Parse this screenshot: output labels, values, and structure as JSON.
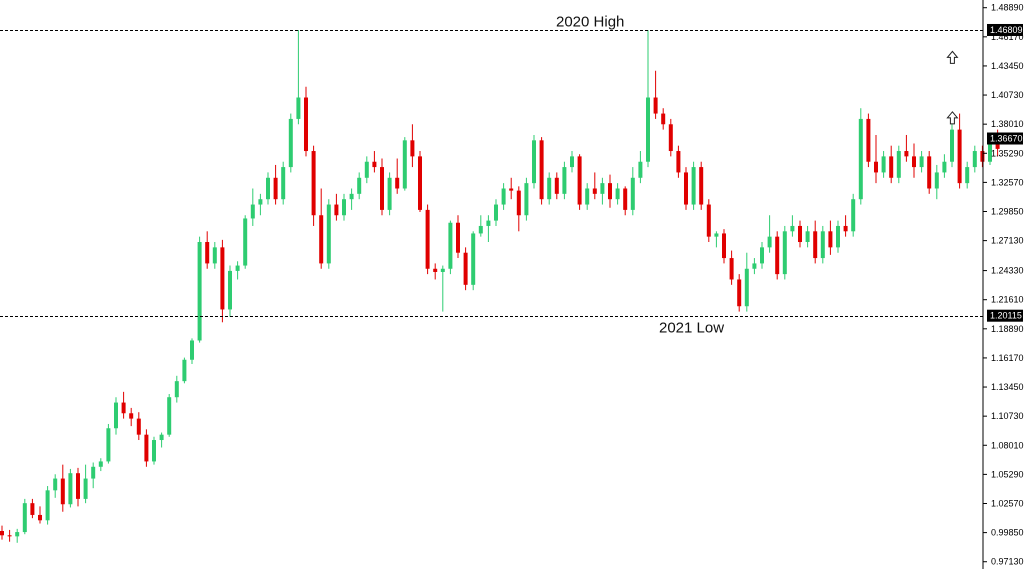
{
  "chart_data": {
    "type": "candlestick",
    "title": "",
    "xlabel": "",
    "ylabel": "",
    "ylim": [
      0.9645,
      1.4961
    ],
    "y_ticks": [
      "1.48890",
      "1.46170",
      "1.43450",
      "1.40730",
      "1.38010",
      "1.35290",
      "1.32570",
      "1.29850",
      "1.27130",
      "1.24330",
      "1.21610",
      "1.18890",
      "1.16170",
      "1.13450",
      "1.10730",
      "1.08010",
      "1.05290",
      "1.02570",
      "0.99850",
      "0.97130"
    ],
    "current_price": "1.36670",
    "colors": {
      "up": "#2ecc71",
      "down": "#e00000",
      "level_line": "#000000",
      "price_box": "#000000"
    },
    "levels": [
      {
        "name": "2020 High",
        "price": "1.46809"
      },
      {
        "name": "2021 Low",
        "price": "1.20115"
      }
    ],
    "arrows": [
      {
        "icon": "up-arrow-icon",
        "price": 1.4425,
        "index": 124
      },
      {
        "icon": "up-arrow-icon",
        "price": 1.386,
        "index": 124
      }
    ],
    "candles": [
      [
        1.0,
        1.005,
        0.992,
        0.996
      ],
      [
        0.996,
        1.001,
        0.99,
        0.995
      ],
      [
        0.995,
        1.002,
        0.989,
        0.999
      ],
      [
        0.999,
        1.03,
        0.997,
        1.026
      ],
      [
        1.026,
        1.03,
        1.012,
        1.015
      ],
      [
        1.015,
        1.023,
        1.007,
        1.01
      ],
      [
        1.01,
        1.042,
        1.006,
        1.038
      ],
      [
        1.038,
        1.053,
        1.031,
        1.049
      ],
      [
        1.049,
        1.062,
        1.018,
        1.025
      ],
      [
        1.025,
        1.058,
        1.022,
        1.054
      ],
      [
        1.054,
        1.059,
        1.023,
        1.03
      ],
      [
        1.03,
        1.062,
        1.026,
        1.049
      ],
      [
        1.049,
        1.064,
        1.04,
        1.06
      ],
      [
        1.06,
        1.068,
        1.056,
        1.065
      ],
      [
        1.065,
        1.1,
        1.063,
        1.096
      ],
      [
        1.096,
        1.125,
        1.09,
        1.12
      ],
      [
        1.12,
        1.13,
        1.105,
        1.11
      ],
      [
        1.11,
        1.115,
        1.098,
        1.105
      ],
      [
        1.105,
        1.111,
        1.085,
        1.09
      ],
      [
        1.09,
        1.095,
        1.06,
        1.065
      ],
      [
        1.065,
        1.088,
        1.062,
        1.085
      ],
      [
        1.085,
        1.092,
        1.078,
        1.09
      ],
      [
        1.09,
        1.128,
        1.088,
        1.125
      ],
      [
        1.125,
        1.145,
        1.12,
        1.14
      ],
      [
        1.14,
        1.162,
        1.138,
        1.16
      ],
      [
        1.16,
        1.18,
        1.156,
        1.178
      ],
      [
        1.178,
        1.275,
        1.176,
        1.27
      ],
      [
        1.27,
        1.28,
        1.245,
        1.25
      ],
      [
        1.25,
        1.27,
        1.245,
        1.265
      ],
      [
        1.265,
        1.272,
        1.195,
        1.207
      ],
      [
        1.207,
        1.248,
        1.2,
        1.243
      ],
      [
        1.243,
        1.252,
        1.235,
        1.248
      ],
      [
        1.248,
        1.295,
        1.245,
        1.292
      ],
      [
        1.292,
        1.32,
        1.285,
        1.305
      ],
      [
        1.305,
        1.315,
        1.295,
        1.31
      ],
      [
        1.31,
        1.335,
        1.305,
        1.33
      ],
      [
        1.33,
        1.342,
        1.305,
        1.31
      ],
      [
        1.31,
        1.345,
        1.305,
        1.34
      ],
      [
        1.34,
        1.39,
        1.335,
        1.385
      ],
      [
        1.385,
        1.468,
        1.38,
        1.405
      ],
      [
        1.405,
        1.415,
        1.35,
        1.355
      ],
      [
        1.355,
        1.36,
        1.285,
        1.295
      ],
      [
        1.295,
        1.32,
        1.245,
        1.25
      ],
      [
        1.25,
        1.31,
        1.245,
        1.305
      ],
      [
        1.305,
        1.315,
        1.29,
        1.295
      ],
      [
        1.295,
        1.315,
        1.29,
        1.31
      ],
      [
        1.31,
        1.32,
        1.3,
        1.315
      ],
      [
        1.315,
        1.335,
        1.31,
        1.33
      ],
      [
        1.33,
        1.35,
        1.325,
        1.345
      ],
      [
        1.345,
        1.355,
        1.335,
        1.34
      ],
      [
        1.34,
        1.348,
        1.295,
        1.3
      ],
      [
        1.3,
        1.335,
        1.295,
        1.33
      ],
      [
        1.33,
        1.348,
        1.315,
        1.32
      ],
      [
        1.32,
        1.368,
        1.318,
        1.365
      ],
      [
        1.365,
        1.38,
        1.34,
        1.35
      ],
      [
        1.35,
        1.355,
        1.298,
        1.3
      ],
      [
        1.3,
        1.305,
        1.24,
        1.245
      ],
      [
        1.245,
        1.25,
        1.235,
        1.242
      ],
      [
        1.242,
        1.248,
        1.205,
        1.245
      ],
      [
        1.245,
        1.29,
        1.24,
        1.288
      ],
      [
        1.288,
        1.295,
        1.255,
        1.26
      ],
      [
        1.26,
        1.265,
        1.225,
        1.23
      ],
      [
        1.23,
        1.28,
        1.225,
        1.278
      ],
      [
        1.278,
        1.295,
        1.275,
        1.285
      ],
      [
        1.285,
        1.295,
        1.27,
        1.29
      ],
      [
        1.29,
        1.31,
        1.285,
        1.305
      ],
      [
        1.305,
        1.325,
        1.3,
        1.32
      ],
      [
        1.32,
        1.33,
        1.31,
        1.318
      ],
      [
        1.318,
        1.322,
        1.28,
        1.295
      ],
      [
        1.295,
        1.33,
        1.29,
        1.325
      ],
      [
        1.325,
        1.37,
        1.32,
        1.365
      ],
      [
        1.365,
        1.368,
        1.305,
        1.31
      ],
      [
        1.31,
        1.335,
        1.305,
        1.33
      ],
      [
        1.33,
        1.335,
        1.31,
        1.315
      ],
      [
        1.315,
        1.345,
        1.31,
        1.34
      ],
      [
        1.34,
        1.355,
        1.335,
        1.35
      ],
      [
        1.35,
        1.352,
        1.3,
        1.305
      ],
      [
        1.305,
        1.325,
        1.3,
        1.32
      ],
      [
        1.32,
        1.335,
        1.31,
        1.315
      ],
      [
        1.315,
        1.33,
        1.305,
        1.325
      ],
      [
        1.325,
        1.333,
        1.302,
        1.31
      ],
      [
        1.31,
        1.325,
        1.305,
        1.32
      ],
      [
        1.32,
        1.322,
        1.295,
        1.3
      ],
      [
        1.3,
        1.34,
        1.295,
        1.33
      ],
      [
        1.33,
        1.355,
        1.325,
        1.345
      ],
      [
        1.345,
        1.468,
        1.34,
        1.405
      ],
      [
        1.405,
        1.43,
        1.385,
        1.39
      ],
      [
        1.39,
        1.395,
        1.375,
        1.38
      ],
      [
        1.38,
        1.385,
        1.35,
        1.355
      ],
      [
        1.355,
        1.36,
        1.33,
        1.335
      ],
      [
        1.335,
        1.34,
        1.3,
        1.305
      ],
      [
        1.305,
        1.345,
        1.3,
        1.34
      ],
      [
        1.34,
        1.345,
        1.3,
        1.305
      ],
      [
        1.305,
        1.31,
        1.27,
        1.275
      ],
      [
        1.275,
        1.28,
        1.265,
        1.278
      ],
      [
        1.278,
        1.282,
        1.25,
        1.255
      ],
      [
        1.255,
        1.262,
        1.23,
        1.235
      ],
      [
        1.235,
        1.24,
        1.205,
        1.21
      ],
      [
        1.21,
        1.26,
        1.205,
        1.245
      ],
      [
        1.245,
        1.255,
        1.24,
        1.25
      ],
      [
        1.25,
        1.27,
        1.245,
        1.265
      ],
      [
        1.265,
        1.295,
        1.26,
        1.275
      ],
      [
        1.275,
        1.28,
        1.235,
        1.24
      ],
      [
        1.24,
        1.285,
        1.235,
        1.28
      ],
      [
        1.28,
        1.295,
        1.275,
        1.285
      ],
      [
        1.285,
        1.29,
        1.265,
        1.27
      ],
      [
        1.27,
        1.285,
        1.265,
        1.28
      ],
      [
        1.28,
        1.29,
        1.25,
        1.255
      ],
      [
        1.255,
        1.285,
        1.25,
        1.28
      ],
      [
        1.28,
        1.29,
        1.258,
        1.265
      ],
      [
        1.265,
        1.29,
        1.26,
        1.285
      ],
      [
        1.285,
        1.295,
        1.275,
        1.28
      ],
      [
        1.28,
        1.315,
        1.275,
        1.31
      ],
      [
        1.31,
        1.395,
        1.305,
        1.385
      ],
      [
        1.385,
        1.39,
        1.34,
        1.345
      ],
      [
        1.345,
        1.37,
        1.325,
        1.335
      ],
      [
        1.335,
        1.355,
        1.33,
        1.35
      ],
      [
        1.35,
        1.36,
        1.325,
        1.33
      ],
      [
        1.33,
        1.36,
        1.325,
        1.355
      ],
      [
        1.355,
        1.37,
        1.345,
        1.35
      ],
      [
        1.35,
        1.362,
        1.33,
        1.34
      ],
      [
        1.34,
        1.355,
        1.335,
        1.35
      ],
      [
        1.35,
        1.355,
        1.315,
        1.32
      ],
      [
        1.32,
        1.342,
        1.31,
        1.335
      ],
      [
        1.335,
        1.352,
        1.33,
        1.345
      ],
      [
        1.345,
        1.38,
        1.34,
        1.375
      ],
      [
        1.375,
        1.39,
        1.32,
        1.325
      ],
      [
        1.325,
        1.345,
        1.32,
        1.34
      ],
      [
        1.34,
        1.36,
        1.335,
        1.355
      ],
      [
        1.355,
        1.36,
        1.34,
        1.345
      ],
      [
        1.345,
        1.37,
        1.342,
        1.365
      ],
      [
        1.365,
        1.375,
        1.35,
        1.357
      ]
    ]
  }
}
